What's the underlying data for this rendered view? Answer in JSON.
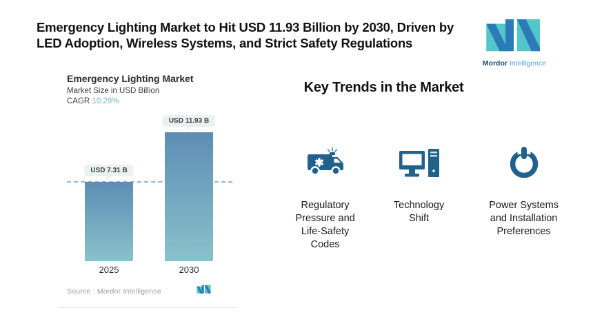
{
  "header": {
    "title": "Emergency Lighting Market to Hit USD 11.93 Billion by 2030, Driven by LED Adoption, Wireless Systems, and Strict Safety Regulations",
    "logo": {
      "name": "Mordor Intelligence",
      "text_bold": "Mordor",
      "text_light": " Intelligence",
      "blue": "#2b7bb9",
      "teal": "#52c6c8"
    }
  },
  "chart": {
    "title": "Emergency Lighting Market",
    "subtitle": "Market Size in USD Billion",
    "cagr_label": "CAGR ",
    "cagr_value": "10.29%",
    "source_label": "Source :  Mordor Intelligence",
    "years": [
      "2025",
      "2030"
    ]
  },
  "chart_data": {
    "type": "bar",
    "title": "Emergency Lighting Market",
    "subtitle": "Market Size in USD Billion",
    "unit": "USD Billion",
    "cagr": "10.29%",
    "categories": [
      "2025",
      "2030"
    ],
    "values": [
      7.31,
      11.93
    ],
    "data_labels": [
      "USD 7.31 B",
      "USD 11.93 B"
    ],
    "reference_line_value": 7.31,
    "reference_line_style": "dashed",
    "bar_gradient_top": "#5e8db4",
    "bar_gradient_bottom": "#88c2cb",
    "grid": false,
    "legend": false
  },
  "trends": {
    "heading": "Key Trends in the Market",
    "icon_color": "#20628c",
    "items": [
      {
        "icon": "ambulance-icon",
        "label": "Regulatory Pressure and Life-Safety Codes"
      },
      {
        "icon": "desktop-computer-icon",
        "label": "Technology Shift"
      },
      {
        "icon": "power-button-icon",
        "label": "Power Systems and Installation Preferences"
      }
    ]
  }
}
